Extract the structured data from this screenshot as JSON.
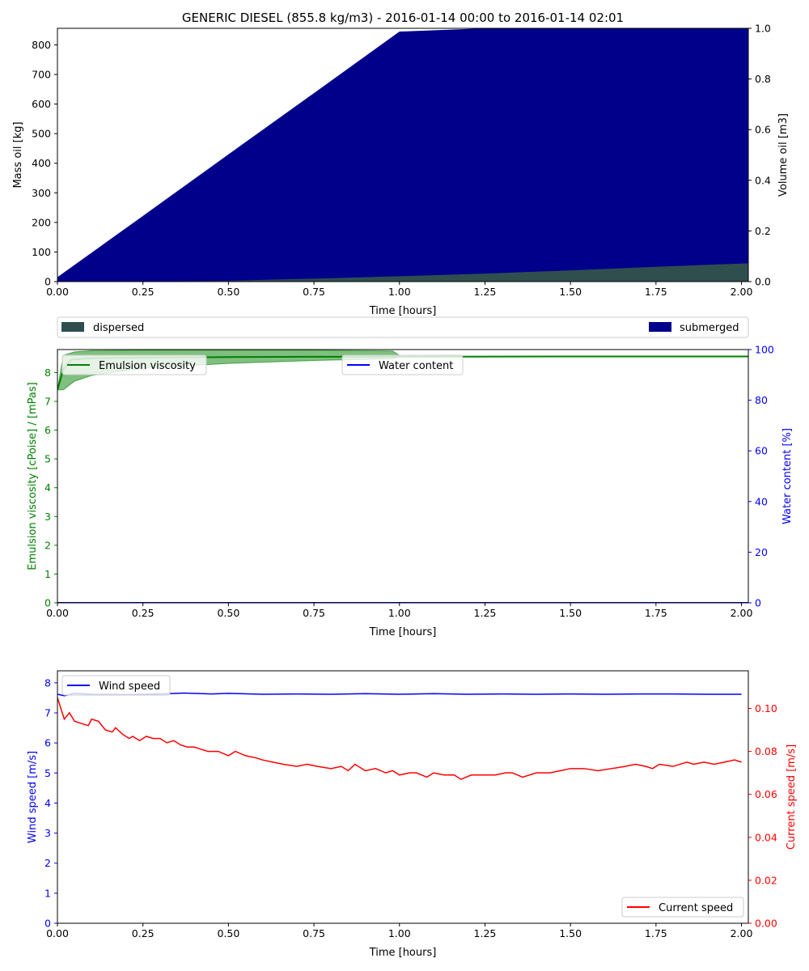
{
  "figure": {
    "title": "GENERIC DIESEL (855.8 kg/m3) - 2016-01-14 00:00 to 2016-01-14 02:01"
  },
  "chart_data": [
    {
      "type": "area",
      "id": "mass-budget",
      "xlabel": "Time  [hours]",
      "ylabel": "Mass oil  [kg]",
      "ylabel_right": "Volume oil [m3]",
      "xlim": [
        0,
        2.02
      ],
      "ylim": [
        0,
        856
      ],
      "ylim_right": [
        0,
        1.0
      ],
      "xticks": [
        "0.00",
        "0.25",
        "0.50",
        "0.75",
        "1.00",
        "1.25",
        "1.50",
        "1.75",
        "2.00"
      ],
      "xtick_values": [
        0,
        0.25,
        0.5,
        0.75,
        1.0,
        1.25,
        1.5,
        1.75,
        2.0
      ],
      "yticks": [
        "0",
        "100",
        "200",
        "300",
        "400",
        "500",
        "600",
        "700",
        "800"
      ],
      "ytick_values": [
        0,
        100,
        200,
        300,
        400,
        500,
        600,
        700,
        800
      ],
      "yticks_right": [
        "0.0",
        "0.2",
        "0.4",
        "0.6",
        "0.8",
        "1.0"
      ],
      "ytick_values_right": [
        0,
        0.2,
        0.4,
        0.6,
        0.8,
        1.0
      ],
      "legend_position": "below",
      "series": [
        {
          "name": "dispersed",
          "color": "#2f4f4f",
          "x": [
            0,
            0.25,
            0.5,
            0.75,
            1.0,
            1.25,
            1.5,
            1.75,
            2.02
          ],
          "y": [
            0,
            0.5,
            3,
            10,
            18,
            27,
            38,
            50,
            62
          ]
        },
        {
          "name": "submerged",
          "color": "#00008b",
          "x": [
            0,
            0.25,
            0.5,
            0.75,
            1.0,
            1.25,
            1.5,
            1.75,
            2.02
          ],
          "y": [
            15,
            222,
            430,
            637,
            845,
            856,
            856,
            856,
            856
          ]
        }
      ]
    },
    {
      "type": "line",
      "id": "emulsion",
      "xlabel": "Time [hours]",
      "ylabel": "Emulsion viscosity  [cPoise] / [mPas]",
      "ylabel_right": "Water content  [%]",
      "xlim": [
        0,
        2.02
      ],
      "ylim": [
        0,
        8.8
      ],
      "ylim_right": [
        0,
        100
      ],
      "xticks": [
        "0.00",
        "0.25",
        "0.50",
        "0.75",
        "1.00",
        "1.25",
        "1.50",
        "1.75",
        "2.00"
      ],
      "xtick_values": [
        0,
        0.25,
        0.5,
        0.75,
        1.0,
        1.25,
        1.5,
        1.75,
        2.0
      ],
      "yticks": [
        "0",
        "1",
        "2",
        "3",
        "4",
        "5",
        "6",
        "7",
        "8"
      ],
      "ytick_values": [
        0,
        1,
        2,
        3,
        4,
        5,
        6,
        7,
        8
      ],
      "yticks_right": [
        "0",
        "20",
        "40",
        "60",
        "80",
        "100"
      ],
      "ytick_values_right": [
        0,
        20,
        40,
        60,
        80,
        100
      ],
      "series": [
        {
          "name": "Emulsion viscosity",
          "color": "#008000",
          "axis": "left",
          "x": [
            0,
            0.017,
            0.04,
            0.1,
            0.25,
            0.5,
            0.75,
            1.0,
            1.5,
            2.02
          ],
          "y": [
            7.4,
            8.1,
            8.45,
            8.5,
            8.52,
            8.54,
            8.55,
            8.55,
            8.56,
            8.56
          ]
        },
        {
          "name": "Water content",
          "color": "#0000ff",
          "axis": "right",
          "x": [
            0,
            2.02
          ],
          "y": [
            0,
            0
          ]
        }
      ],
      "band": {
        "color": "#008000",
        "x": [
          0,
          0.017,
          0.05,
          0.1,
          0.25,
          0.5,
          0.75,
          0.98,
          1.0
        ],
        "low": [
          7.4,
          7.4,
          7.7,
          7.9,
          8.15,
          8.32,
          8.42,
          8.48,
          8.55
        ],
        "high": [
          7.4,
          8.6,
          8.72,
          8.76,
          8.78,
          8.78,
          8.78,
          8.75,
          8.6
        ]
      }
    },
    {
      "type": "line",
      "id": "forcing",
      "xlabel": "Time  [hours]",
      "ylabel": "Wind speed  [m/s]",
      "ylabel_right": "Current speed  [m/s]",
      "xlim": [
        0,
        2.02
      ],
      "ylim": [
        0,
        8.4
      ],
      "ylim_right": [
        0,
        0.1175
      ],
      "xticks": [
        "0.00",
        "0.25",
        "0.50",
        "0.75",
        "1.00",
        "1.25",
        "1.50",
        "1.75",
        "2.00"
      ],
      "xtick_values": [
        0,
        0.25,
        0.5,
        0.75,
        1.0,
        1.25,
        1.5,
        1.75,
        2.0
      ],
      "yticks": [
        "0",
        "1",
        "2",
        "3",
        "4",
        "5",
        "6",
        "7",
        "8"
      ],
      "ytick_values": [
        0,
        1,
        2,
        3,
        4,
        5,
        6,
        7,
        8
      ],
      "yticks_right": [
        "0.00",
        "0.02",
        "0.04",
        "0.06",
        "0.08",
        "0.10"
      ],
      "ytick_values_right": [
        0,
        0.02,
        0.04,
        0.06,
        0.08,
        0.1
      ],
      "series": [
        {
          "name": "Wind speed",
          "color": "#0000ff",
          "axis": "left",
          "x": [
            0,
            0.02,
            0.05,
            0.1,
            0.2,
            0.3,
            0.37,
            0.45,
            0.5,
            0.6,
            0.7,
            0.8,
            0.9,
            1.0,
            1.1,
            1.2,
            1.3,
            1.4,
            1.5,
            1.6,
            1.7,
            1.8,
            1.9,
            2.0
          ],
          "y": [
            7.62,
            7.57,
            7.65,
            7.62,
            7.61,
            7.63,
            7.66,
            7.63,
            7.65,
            7.62,
            7.63,
            7.62,
            7.64,
            7.62,
            7.64,
            7.62,
            7.63,
            7.62,
            7.63,
            7.62,
            7.63,
            7.63,
            7.62,
            7.62
          ]
        },
        {
          "name": "Current speed",
          "color": "#ff0000",
          "axis": "right",
          "x": [
            0,
            0.01,
            0.02,
            0.035,
            0.05,
            0.07,
            0.09,
            0.1,
            0.12,
            0.14,
            0.16,
            0.17,
            0.19,
            0.21,
            0.22,
            0.24,
            0.26,
            0.28,
            0.3,
            0.32,
            0.34,
            0.36,
            0.38,
            0.4,
            0.42,
            0.44,
            0.47,
            0.5,
            0.52,
            0.55,
            0.58,
            0.6,
            0.63,
            0.66,
            0.7,
            0.73,
            0.76,
            0.8,
            0.83,
            0.85,
            0.87,
            0.9,
            0.93,
            0.96,
            0.98,
            1.0,
            1.03,
            1.05,
            1.08,
            1.1,
            1.13,
            1.16,
            1.18,
            1.21,
            1.25,
            1.28,
            1.31,
            1.33,
            1.36,
            1.4,
            1.44,
            1.47,
            1.5,
            1.54,
            1.58,
            1.62,
            1.66,
            1.69,
            1.72,
            1.74,
            1.76,
            1.8,
            1.84,
            1.86,
            1.89,
            1.92,
            1.95,
            1.98,
            2.0
          ],
          "y": [
            0.105,
            0.1,
            0.095,
            0.098,
            0.094,
            0.093,
            0.092,
            0.095,
            0.094,
            0.09,
            0.089,
            0.091,
            0.088,
            0.086,
            0.087,
            0.085,
            0.087,
            0.086,
            0.086,
            0.084,
            0.085,
            0.083,
            0.082,
            0.082,
            0.081,
            0.08,
            0.08,
            0.078,
            0.08,
            0.078,
            0.077,
            0.076,
            0.075,
            0.074,
            0.073,
            0.074,
            0.073,
            0.072,
            0.073,
            0.071,
            0.074,
            0.071,
            0.072,
            0.07,
            0.071,
            0.069,
            0.07,
            0.07,
            0.068,
            0.07,
            0.069,
            0.069,
            0.067,
            0.069,
            0.069,
            0.069,
            0.07,
            0.07,
            0.068,
            0.07,
            0.07,
            0.071,
            0.072,
            0.072,
            0.071,
            0.072,
            0.073,
            0.074,
            0.073,
            0.072,
            0.074,
            0.073,
            0.075,
            0.074,
            0.075,
            0.074,
            0.075,
            0.076,
            0.075
          ]
        }
      ]
    }
  ]
}
